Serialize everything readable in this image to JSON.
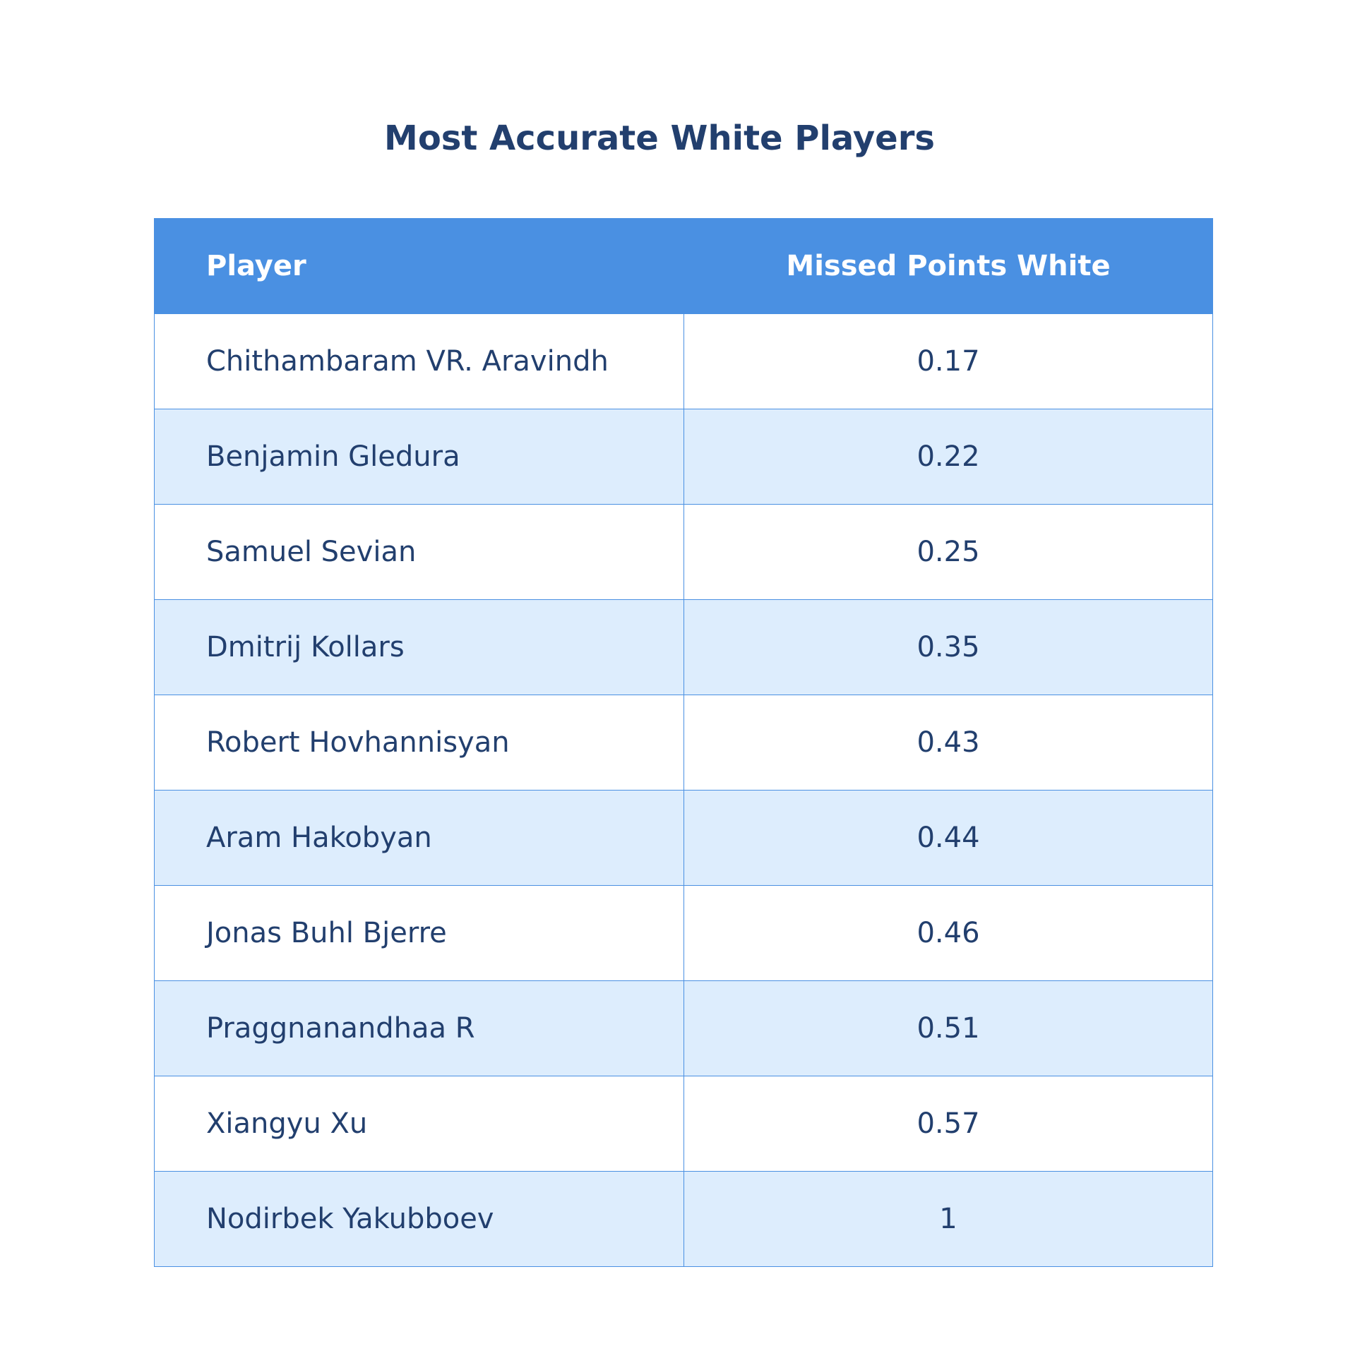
{
  "chart_data": {
    "type": "table",
    "title": "Most Accurate White Players",
    "columns": [
      "Player",
      "Missed Points White"
    ],
    "rows": [
      {
        "player": "Chithambaram VR. Aravindh",
        "value": "0.17"
      },
      {
        "player": "Benjamin Gledura",
        "value": "0.22"
      },
      {
        "player": "Samuel Sevian",
        "value": "0.25"
      },
      {
        "player": "Dmitrij Kollars",
        "value": "0.35"
      },
      {
        "player": "Robert Hovhannisyan",
        "value": "0.43"
      },
      {
        "player": "Aram Hakobyan",
        "value": "0.44"
      },
      {
        "player": "Jonas Buhl Bjerre",
        "value": "0.46"
      },
      {
        "player": "Praggnanandhaa R",
        "value": "0.51"
      },
      {
        "player": "Xiangyu Xu",
        "value": "0.57"
      },
      {
        "player": "Nodirbek Yakubboev",
        "value": "1"
      }
    ],
    "header_color": "#4a90e2",
    "stripe_color": "#ddedfd",
    "text_color": "#223f6e"
  }
}
